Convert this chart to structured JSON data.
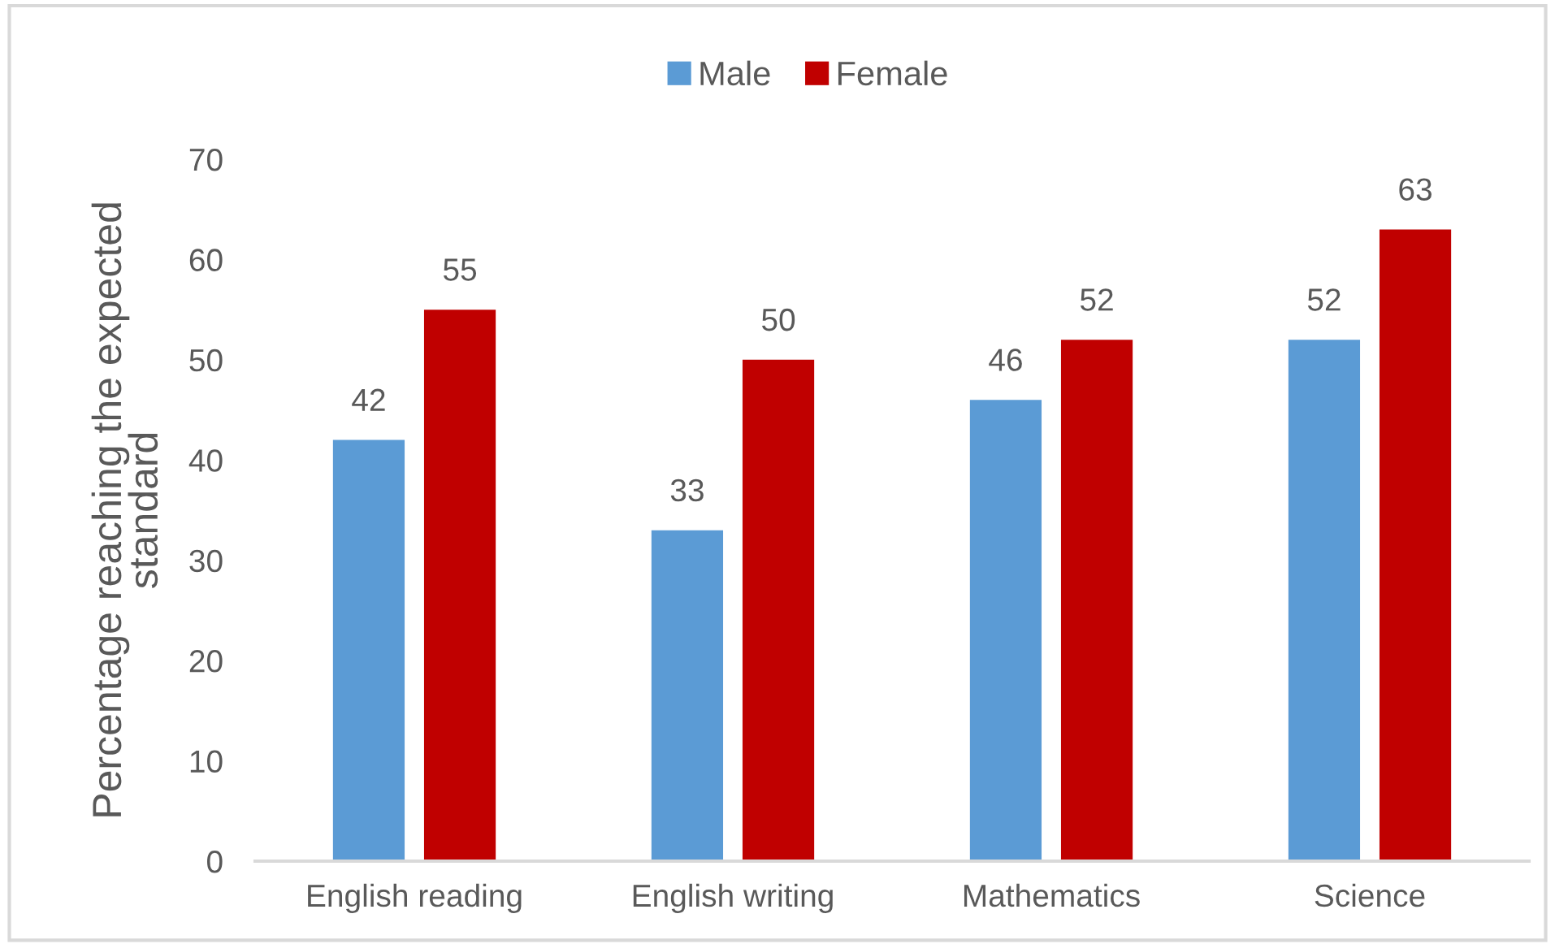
{
  "chart_data": {
    "type": "bar",
    "categories": [
      "English reading",
      "English writing",
      "Mathematics",
      "Science"
    ],
    "series": [
      {
        "name": "Male",
        "color": "#5b9bd5",
        "values": [
          42,
          33,
          46,
          52
        ]
      },
      {
        "name": "Female",
        "color": "#c00000",
        "values": [
          55,
          50,
          52,
          63
        ]
      }
    ],
    "ylabel": "Percentage reaching the expected standard",
    "ylim": [
      0,
      70
    ],
    "yticks": [
      0,
      10,
      20,
      30,
      40,
      50,
      60,
      70
    ],
    "data_labels": true,
    "legend": "top",
    "grid": false
  }
}
